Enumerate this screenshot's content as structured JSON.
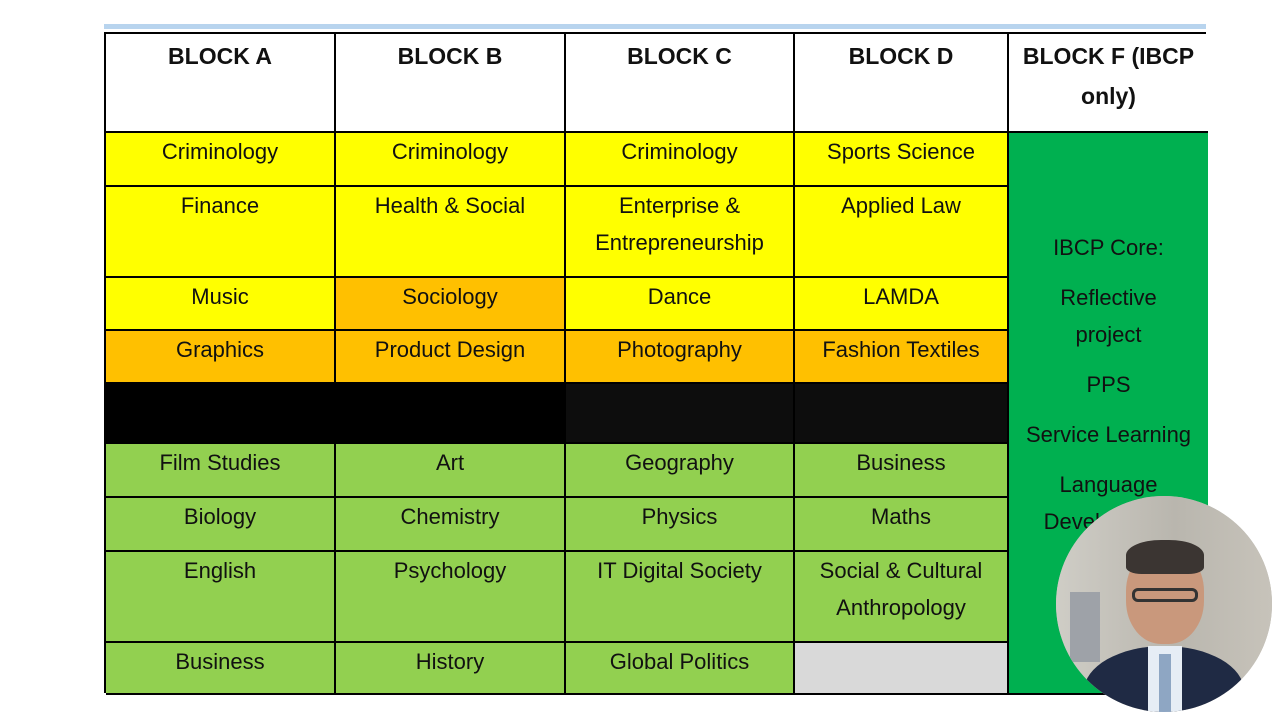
{
  "headers": [
    "BLOCK A",
    "BLOCK B",
    "BLOCK C",
    "BLOCK D",
    "BLOCK F (IBCP only)"
  ],
  "rows": [
    [
      "Criminology",
      "Criminology",
      "Criminology",
      "Sports Science"
    ],
    [
      "Finance",
      "Health & Social",
      "Enterprise & Entrepreneurship",
      "Applied Law"
    ],
    [
      "Music",
      "Sociology",
      "Dance",
      "LAMDA"
    ],
    [
      "Graphics",
      "Product Design",
      "Photography",
      "Fashion Textiles"
    ],
    [
      "",
      "",
      "",
      ""
    ],
    [
      "Film Studies",
      "Art",
      "Geography",
      "Business"
    ],
    [
      "Biology",
      "Chemistry",
      "Physics",
      "Maths"
    ],
    [
      "English",
      "Psychology",
      "IT Digital Society",
      "Social & Cultural Anthropology"
    ],
    [
      "Business",
      "History",
      "Global Politics",
      ""
    ]
  ],
  "row_colors": [
    [
      "#ffff00",
      "#ffff00",
      "#ffff00",
      "#ffff00"
    ],
    [
      "#ffff00",
      "#ffff00",
      "#ffff00",
      "#ffff00"
    ],
    [
      "#ffff00",
      "#ffc000",
      "#ffff00",
      "#ffff00"
    ],
    [
      "#ffc000",
      "#ffc000",
      "#ffc000",
      "#ffc000"
    ],
    [
      "#000000",
      "#000000",
      "#0d0d0d",
      "#0d0d0d"
    ],
    [
      "#92d050",
      "#92d050",
      "#92d050",
      "#92d050"
    ],
    [
      "#92d050",
      "#92d050",
      "#92d050",
      "#92d050"
    ],
    [
      "#92d050",
      "#92d050",
      "#92d050",
      "#92d050"
    ],
    [
      "#92d050",
      "#92d050",
      "#92d050",
      "#d9d9d9"
    ]
  ],
  "ibcp_core": {
    "color": "#00b050",
    "items": [
      "IBCP Core:",
      "Reflective project",
      "PPS",
      "Service Learning",
      "Language Development"
    ]
  }
}
